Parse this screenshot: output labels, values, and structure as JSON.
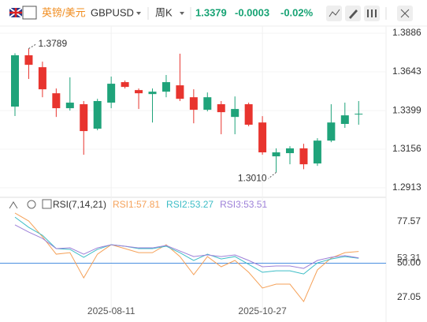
{
  "header": {
    "pair_name": "英镑/美元",
    "symbol": "GBPUSD",
    "period": "周K",
    "price": "1.3379",
    "change": "-0.0003",
    "change_pct": "-0.02%"
  },
  "chart_data": [
    {
      "type": "candlestick",
      "categories": [
        null,
        null,
        null,
        null,
        null,
        null,
        null,
        "2025-08-11",
        null,
        null,
        null,
        null,
        null,
        null,
        null,
        null,
        null,
        null,
        "2025-10-27",
        null,
        null,
        null,
        null,
        null,
        null,
        null
      ],
      "open": [
        1.3424,
        1.3747,
        1.3672,
        1.3508,
        1.3414,
        1.3439,
        1.3285,
        1.3449,
        1.3578,
        1.3528,
        1.3503,
        1.3518,
        1.3558,
        1.3483,
        1.3404,
        1.3439,
        1.3359,
        1.3439,
        1.3324,
        1.3111,
        1.3131,
        1.3161,
        1.3066,
        1.321,
        1.3315,
        1.3376
      ],
      "high": [
        1.376,
        1.3789,
        1.3707,
        1.3538,
        1.3608,
        1.3459,
        1.3473,
        1.3613,
        1.3588,
        1.3538,
        1.3538,
        1.3623,
        1.3757,
        1.3533,
        1.3513,
        1.3459,
        1.3488,
        1.3449,
        1.3364,
        1.3161,
        1.3175,
        1.319,
        1.3225,
        1.3439,
        1.3449,
        1.3459
      ],
      "low": [
        1.3365,
        1.3598,
        1.3483,
        1.3359,
        1.3399,
        1.3121,
        1.3275,
        1.3414,
        1.3538,
        1.3409,
        1.3324,
        1.3483,
        1.3459,
        1.3319,
        1.3394,
        1.325,
        1.325,
        1.33,
        1.3121,
        1.301,
        1.3061,
        1.303,
        1.3051,
        1.32,
        1.329,
        1.331
      ],
      "close": [
        1.3747,
        1.3687,
        1.3533,
        1.3414,
        1.3449,
        1.327,
        1.3459,
        1.3568,
        1.3548,
        1.3508,
        1.3518,
        1.3578,
        1.3473,
        1.3404,
        1.3483,
        1.3389,
        1.3409,
        1.331,
        1.3136,
        1.3136,
        1.3161,
        1.3061,
        1.321,
        1.3324,
        1.3369,
        1.3379
      ],
      "up_color": "#1fa37a",
      "down_color": "#e8342e",
      "ylim": [
        1.2863,
        1.3946
      ],
      "yticks": [
        1.3886,
        1.3643,
        1.3399,
        1.3156,
        1.2913
      ],
      "annotations": [
        {
          "value": 1.3789,
          "label": "1.3789"
        },
        {
          "value": 1.301,
          "label": "1.3010"
        }
      ],
      "grid": true
    },
    {
      "type": "line",
      "title": "RSI(7,14,21)",
      "series": [
        {
          "name": "RSI1:57.81",
          "color": "#f5a25a",
          "values": [
            83.4,
            78.1,
            67.6,
            56.0,
            57.0,
            40.2,
            56.0,
            62.3,
            59.7,
            57.0,
            57.0,
            62.3,
            54.4,
            42.3,
            54.4,
            47.6,
            51.8,
            43.9,
            33.4,
            36.0,
            36.0,
            24.4,
            45.5,
            53.4,
            57.0,
            57.81
          ]
        },
        {
          "name": "RSI2:53.27",
          "color": "#3dbdc6",
          "values": [
            80.7,
            73.9,
            68.6,
            59.7,
            59.2,
            53.9,
            59.2,
            62.3,
            61.3,
            59.7,
            59.7,
            61.3,
            57.0,
            51.8,
            56.0,
            52.8,
            54.4,
            49.2,
            43.9,
            44.9,
            44.9,
            42.8,
            50.2,
            52.8,
            54.4,
            53.27
          ]
        },
        {
          "name": "RSI3:53.51",
          "color": "#9d80d8",
          "values": [
            75.5,
            70.7,
            66.5,
            59.7,
            60.2,
            56.0,
            60.2,
            62.3,
            61.3,
            60.2,
            60.2,
            61.8,
            58.1,
            54.4,
            55.5,
            54.4,
            55.5,
            51.8,
            47.6,
            48.1,
            48.1,
            46.5,
            51.8,
            53.9,
            55.0,
            53.51
          ]
        }
      ],
      "ylim": [
        17.6,
        87.6
      ],
      "yticks": [
        77.57,
        {
          "value": 50,
          "label": "50.00"
        },
        27.05
      ],
      "last_value": 53.31
    }
  ]
}
